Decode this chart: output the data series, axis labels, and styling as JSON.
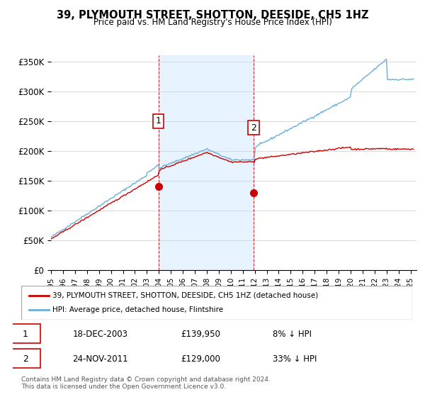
{
  "title": "39, PLYMOUTH STREET, SHOTTON, DEESIDE, CH5 1HZ",
  "subtitle": "Price paid vs. HM Land Registry's House Price Index (HPI)",
  "ylim": [
    0,
    360000
  ],
  "yticks": [
    0,
    50000,
    100000,
    150000,
    200000,
    250000,
    300000,
    350000
  ],
  "ytick_labels": [
    "£0",
    "£50K",
    "£100K",
    "£150K",
    "£200K",
    "£250K",
    "£300K",
    "£350K"
  ],
  "sale1_date_num": 2003.96,
  "sale1_price": 139950,
  "sale1_label": "1",
  "sale1_date_str": "18-DEC-2003",
  "sale1_pct": "8% ↓ HPI",
  "sale2_date_num": 2011.9,
  "sale2_price": 129000,
  "sale2_label": "2",
  "sale2_date_str": "24-NOV-2011",
  "sale2_pct": "33% ↓ HPI",
  "hpi_color": "#6baed6",
  "price_color": "#cc0000",
  "sale_marker_color": "#cc0000",
  "vline_color": "#cc0000",
  "shade_color": "#ddeeff",
  "legend_label_price": "39, PLYMOUTH STREET, SHOTTON, DEESIDE, CH5 1HZ (detached house)",
  "legend_label_hpi": "HPI: Average price, detached house, Flintshire",
  "footer": "Contains HM Land Registry data © Crown copyright and database right 2024.\nThis data is licensed under the Open Government Licence v3.0.",
  "table_row1": [
    "1",
    "18-DEC-2003",
    "£139,950",
    "8% ↓ HPI"
  ],
  "table_row2": [
    "2",
    "24-NOV-2011",
    "£129,000",
    "33% ↓ HPI"
  ]
}
